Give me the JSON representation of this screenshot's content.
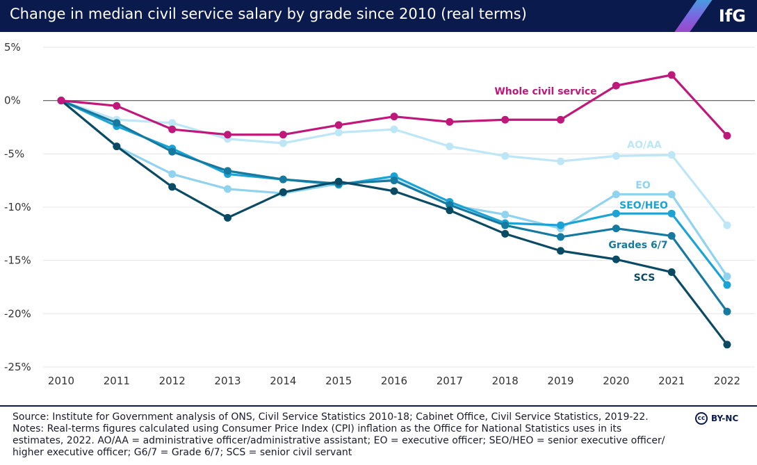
{
  "header": {
    "title": "Change in median civil service salary by grade since 2010 (real terms)",
    "logo": "IfG"
  },
  "chart_data": {
    "type": "line",
    "title": "Change in median civil service salary by grade since 2010 (real terms)",
    "xlabel": "",
    "ylabel": "",
    "x": [
      2010,
      2011,
      2012,
      2013,
      2014,
      2015,
      2016,
      2017,
      2018,
      2019,
      2020,
      2021,
      2022
    ],
    "ylim": [
      -25,
      5
    ],
    "yticks": [
      5,
      0,
      -5,
      -10,
      -15,
      -20,
      -25
    ],
    "ytick_labels": [
      "5%",
      "0%",
      "-5%",
      "-10%",
      "-15%",
      "-20%",
      "-25%"
    ],
    "grid": "horizontal",
    "legend": "direct labels",
    "series": [
      {
        "name": "AO/AA",
        "color": "#bde6f6",
        "values": [
          0,
          -1.8,
          -2.1,
          -3.6,
          -4.0,
          -3.0,
          -2.7,
          -4.3,
          -5.2,
          -5.7,
          -5.2,
          -5.1,
          -11.7
        ]
      },
      {
        "name": "EO",
        "color": "#8fd3ee",
        "values": [
          0,
          -4.3,
          -6.9,
          -8.3,
          -8.7,
          -7.8,
          -7.4,
          -9.8,
          -10.7,
          -12.0,
          -8.8,
          -8.8,
          -16.5
        ]
      },
      {
        "name": "SEO/HEO",
        "color": "#1aa3d4",
        "values": [
          0,
          -2.4,
          -4.5,
          -6.9,
          -7.4,
          -7.9,
          -7.1,
          -9.5,
          -11.5,
          -11.7,
          -10.6,
          -10.6,
          -17.3
        ]
      },
      {
        "name": "Grades 6/7",
        "color": "#1679a0",
        "values": [
          0,
          -2.1,
          -4.8,
          -6.6,
          -7.4,
          -7.8,
          -7.5,
          -9.8,
          -11.7,
          -12.8,
          -12.0,
          -12.7,
          -19.8
        ]
      },
      {
        "name": "SCS",
        "color": "#0a4a63",
        "values": [
          0,
          -4.3,
          -8.1,
          -11.0,
          -8.6,
          -7.6,
          -8.5,
          -10.3,
          -12.5,
          -14.1,
          -14.9,
          -16.1,
          -22.9
        ]
      },
      {
        "name": "Whole civil service",
        "color": "#c0187a",
        "values": [
          0,
          -0.5,
          -2.7,
          -3.2,
          -3.2,
          -2.3,
          -1.5,
          -2.0,
          -1.8,
          -1.8,
          1.4,
          2.4,
          -3.3
        ]
      }
    ]
  },
  "footer": {
    "source": "Source: Institute for Government analysis of ONS, Civil Service Statistics 2010-18; Cabinet Office, Civil Service Statistics, 2019-22.",
    "notes_line1": "Notes: Real-terms figures calculated using Consumer Price Index (CPI) inflation as the Office for National Statistics uses in its",
    "notes_line2": "estimates, 2022. AO/AA = administrative officer/administrative assistant; EO = executive officer; SEO/HEO = senior executive officer/",
    "notes_line3": "higher executive officer; G6/7 = Grade 6/7; SCS = senior civil servant",
    "license_mark": "cc",
    "license": "BY-NC"
  }
}
